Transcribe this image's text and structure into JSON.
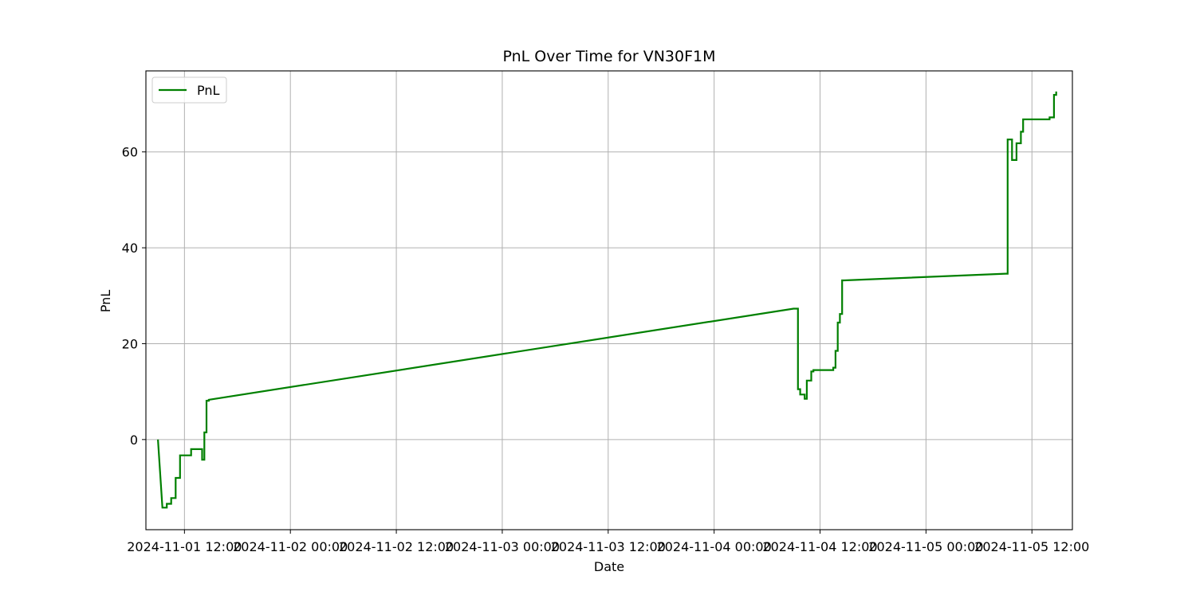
{
  "chart_data": {
    "type": "line",
    "title": "PnL Over Time for VN30F1M",
    "xlabel": "Date",
    "ylabel": "PnL",
    "grid": true,
    "legend_position": "upper-left",
    "x_tick_labels": [
      "2024-11-01 12:00",
      "2024-11-02 00:00",
      "2024-11-02 12:00",
      "2024-11-03 00:00",
      "2024-11-03 12:00",
      "2024-11-04 00:00",
      "2024-11-04 12:00",
      "2024-11-05 00:00",
      "2024-11-05 12:00"
    ],
    "y_ticks": [
      0,
      20,
      40,
      60
    ],
    "xlim": [
      "2024-11-01 07:38",
      "2024-11-05 16:35"
    ],
    "ylim": [
      -18.8,
      76.9
    ],
    "series": [
      {
        "name": "PnL",
        "color": "#008000",
        "step": "post",
        "x": [
          "2024-11-01 09:00",
          "2024-11-01 09:30",
          "2024-11-01 10:00",
          "2024-11-01 10:30",
          "2024-11-01 11:00",
          "2024-11-01 11:30",
          "2024-11-01 12:45",
          "2024-11-01 13:30",
          "2024-11-01 14:00",
          "2024-11-01 14:15",
          "2024-11-01 14:30",
          "2024-11-01 14:45",
          "2024-11-04 09:00",
          "2024-11-04 09:30",
          "2024-11-04 09:45",
          "2024-11-04 10:15",
          "2024-11-04 10:30",
          "2024-11-04 11:00",
          "2024-11-04 11:15",
          "2024-11-04 13:30",
          "2024-11-04 13:45",
          "2024-11-04 14:00",
          "2024-11-04 14:15",
          "2024-11-04 14:30",
          "2024-11-04 14:45",
          "2024-11-05 09:00",
          "2024-11-05 09:15",
          "2024-11-05 09:45",
          "2024-11-05 10:15",
          "2024-11-05 10:45",
          "2024-11-05 11:00",
          "2024-11-05 13:30",
          "2024-11-05 14:00",
          "2024-11-05 14:30",
          "2024-11-05 14:45"
        ],
        "y": [
          0,
          -14.2,
          -13.4,
          -12.2,
          -8.0,
          -3.3,
          -2.0,
          -2.0,
          -4.2,
          1.5,
          8.1,
          8.3,
          27.3,
          10.5,
          9.4,
          8.5,
          12.3,
          14.2,
          14.5,
          15.0,
          18.5,
          24.4,
          26.2,
          33.2,
          33.2,
          34.6,
          62.6,
          58.3,
          61.8,
          64.2,
          66.8,
          66.8,
          67.2,
          71.9,
          72.6
        ]
      }
    ]
  }
}
